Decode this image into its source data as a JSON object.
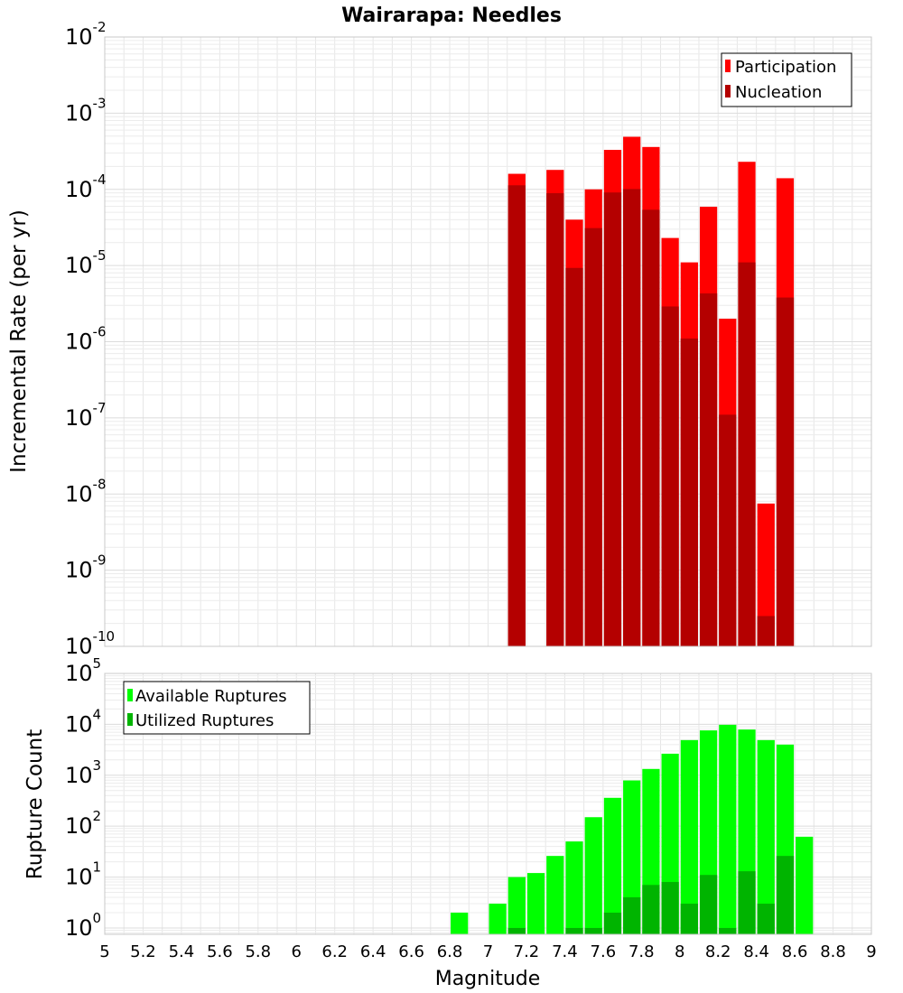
{
  "chart_data": [
    {
      "type": "bar",
      "title": "Wairarapa: Needles",
      "ylabel": "Incremental Rate (per yr)",
      "xlabel": "",
      "yscale": "log",
      "ylim": [
        1e-10,
        0.01
      ],
      "xlim": [
        5,
        9
      ],
      "grid": true,
      "legend_position": "top-right",
      "bin_width": 0.1,
      "y_ticks": [
        {
          "base": "10",
          "exp": "-10"
        },
        {
          "base": "10",
          "exp": "-9"
        },
        {
          "base": "10",
          "exp": "-8"
        },
        {
          "base": "10",
          "exp": "-7"
        },
        {
          "base": "10",
          "exp": "-6"
        },
        {
          "base": "10",
          "exp": "-5"
        },
        {
          "base": "10",
          "exp": "-4"
        },
        {
          "base": "10",
          "exp": "-3"
        },
        {
          "base": "10",
          "exp": "-2"
        }
      ],
      "series": [
        {
          "name": "Participation",
          "color": "#ff0000",
          "points": [
            [
              7.15,
              0.00016
            ],
            [
              7.35,
              0.00018
            ],
            [
              7.45,
              4e-05
            ],
            [
              7.55,
              0.0001
            ],
            [
              7.65,
              0.00033
            ],
            [
              7.75,
              0.00049
            ],
            [
              7.85,
              0.00036
            ],
            [
              7.95,
              2.3e-05
            ],
            [
              8.05,
              1.1e-05
            ],
            [
              8.15,
              5.9e-05
            ],
            [
              8.25,
              2e-06
            ],
            [
              8.35,
              0.00023
            ],
            [
              8.45,
              7.5e-09
            ],
            [
              8.55,
              0.00014
            ]
          ]
        },
        {
          "name": "Nucleation",
          "color": "#b40000",
          "points": [
            [
              7.15,
              0.000113
            ],
            [
              7.35,
              8.9e-05
            ],
            [
              7.45,
              9.3e-06
            ],
            [
              7.55,
              3.1e-05
            ],
            [
              7.65,
              9.1e-05
            ],
            [
              7.75,
              0.000101
            ],
            [
              7.85,
              5.4e-05
            ],
            [
              7.95,
              2.9e-06
            ],
            [
              8.05,
              1.1e-06
            ],
            [
              8.15,
              4.3e-06
            ],
            [
              8.25,
              1.1e-07
            ],
            [
              8.35,
              1.1e-05
            ],
            [
              8.45,
              2.5e-10
            ],
            [
              8.55,
              3.8e-06
            ]
          ]
        }
      ]
    },
    {
      "type": "bar",
      "title": "",
      "ylabel": "Rupture Count",
      "xlabel": "Magnitude",
      "yscale": "log",
      "ylim": [
        0.75,
        100000
      ],
      "xlim": [
        5,
        9
      ],
      "grid": true,
      "legend_position": "top-left",
      "bin_width": 0.1,
      "x_ticks": [
        "5",
        "5.2",
        "5.4",
        "5.6",
        "5.8",
        "6",
        "6.2",
        "6.4",
        "6.6",
        "6.8",
        "7",
        "7.2",
        "7.4",
        "7.6",
        "7.8",
        "8",
        "8.2",
        "8.4",
        "8.6",
        "8.8",
        "9"
      ],
      "y_ticks": [
        {
          "base": "10",
          "exp": "0"
        },
        {
          "base": "10",
          "exp": "1"
        },
        {
          "base": "10",
          "exp": "2"
        },
        {
          "base": "10",
          "exp": "3"
        },
        {
          "base": "10",
          "exp": "4"
        },
        {
          "base": "10",
          "exp": "5"
        }
      ],
      "series": [
        {
          "name": "Available Ruptures",
          "color": "#00ff00",
          "points": [
            [
              6.85,
              2
            ],
            [
              7.05,
              3
            ],
            [
              7.15,
              10
            ],
            [
              7.25,
              12
            ],
            [
              7.35,
              26
            ],
            [
              7.45,
              50
            ],
            [
              7.55,
              150
            ],
            [
              7.65,
              360
            ],
            [
              7.75,
              790
            ],
            [
              7.85,
              1330
            ],
            [
              7.95,
              2650
            ],
            [
              8.05,
              4900
            ],
            [
              8.15,
              7600
            ],
            [
              8.25,
              9800
            ],
            [
              8.35,
              7900
            ],
            [
              8.45,
              4900
            ],
            [
              8.55,
              4000
            ],
            [
              8.65,
              62
            ]
          ]
        },
        {
          "name": "Utilized Ruptures",
          "color": "#00b400",
          "points": [
            [
              7.15,
              1
            ],
            [
              7.45,
              1
            ],
            [
              7.55,
              1
            ],
            [
              7.65,
              2
            ],
            [
              7.75,
              4
            ],
            [
              7.85,
              7
            ],
            [
              7.95,
              8
            ],
            [
              8.05,
              3
            ],
            [
              8.15,
              11
            ],
            [
              8.25,
              1
            ],
            [
              8.35,
              13
            ],
            [
              8.45,
              3
            ],
            [
              8.55,
              26
            ]
          ]
        }
      ]
    }
  ]
}
